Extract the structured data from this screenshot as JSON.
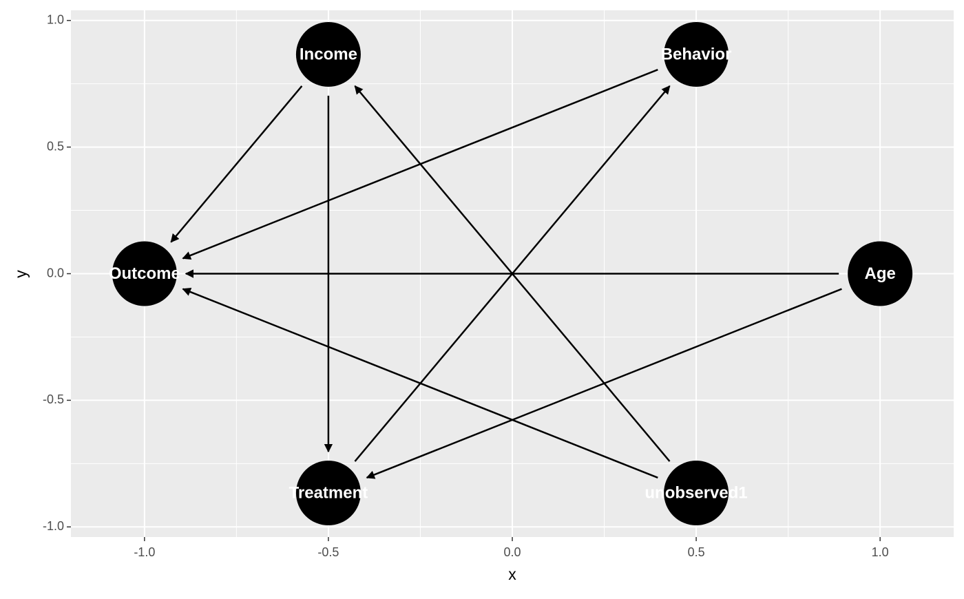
{
  "chart_data": {
    "type": "dag",
    "x_label": "x",
    "y_label": "y",
    "xlim": [
      -1.2,
      1.2
    ],
    "ylim": [
      -1.04,
      1.04
    ],
    "xticks": [
      {
        "value": -1,
        "label": "-1.0"
      },
      {
        "value": -0.5,
        "label": "-0.5"
      },
      {
        "value": 0,
        "label": "0.0"
      },
      {
        "value": 0.5,
        "label": "0.5"
      },
      {
        "value": 1,
        "label": "1.0"
      }
    ],
    "yticks": [
      {
        "value": -1,
        "label": "-1.0"
      },
      {
        "value": -0.5,
        "label": "-0.5"
      },
      {
        "value": 0,
        "label": "0.0"
      },
      {
        "value": 0.5,
        "label": "0.5"
      },
      {
        "value": 1,
        "label": "1.0"
      }
    ],
    "grid": true,
    "node_color": "#000000",
    "nodes": [
      {
        "name": "Income",
        "x": -0.5,
        "y": 0.866
      },
      {
        "name": "Behavior",
        "x": 0.5,
        "y": 0.866
      },
      {
        "name": "Outcome",
        "x": -1,
        "y": 0
      },
      {
        "name": "Age",
        "x": 1,
        "y": 0
      },
      {
        "name": "Treatment",
        "x": -0.5,
        "y": -0.866
      },
      {
        "name": "unobserved1",
        "x": 0.5,
        "y": -0.866
      }
    ],
    "edges": [
      [
        "Income",
        "Outcome"
      ],
      [
        "Income",
        "Treatment"
      ],
      [
        "Behavior",
        "Outcome"
      ],
      [
        "Age",
        "Outcome"
      ],
      [
        "Age",
        "Treatment"
      ],
      [
        "Treatment",
        "Behavior"
      ],
      [
        "unobserved1",
        "Income"
      ],
      [
        "unobserved1",
        "Outcome"
      ]
    ]
  }
}
